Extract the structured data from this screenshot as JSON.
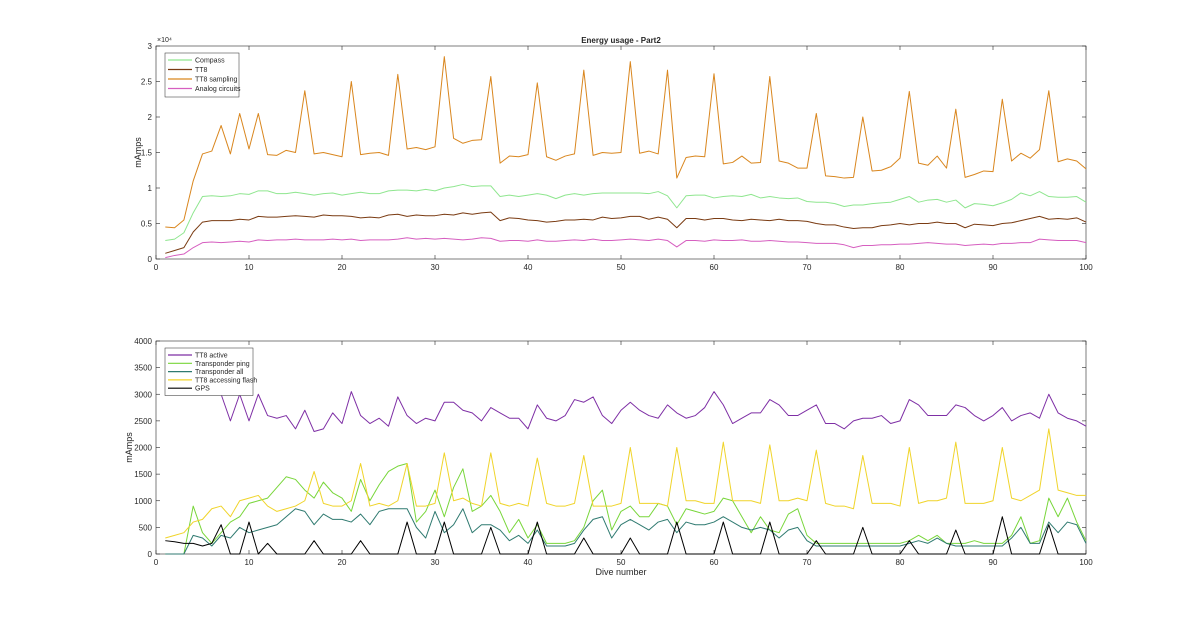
{
  "chart_data": [
    {
      "type": "line",
      "title": "Energy usage - Part2",
      "xlabel": "",
      "ylabel": "mAmps",
      "y_exponent": "×10⁴",
      "xlim": [
        0,
        100
      ],
      "ylim": [
        0,
        30000
      ],
      "xticks": [
        0,
        10,
        20,
        30,
        40,
        50,
        60,
        70,
        80,
        90,
        100
      ],
      "yticks": [
        0,
        5000,
        10000,
        15000,
        20000,
        25000,
        30000
      ],
      "ytick_labels": [
        "0",
        "0.5",
        "1",
        "1.5",
        "2",
        "2.5",
        "3"
      ],
      "grid": false,
      "legend_position": "top-left",
      "series": [
        {
          "name": "Compass",
          "color": "#8fe68f",
          "values": [
            2600,
            2800,
            3700,
            6500,
            8800,
            8900,
            8800,
            8900,
            9200,
            9100,
            9600,
            9600,
            9200,
            9200,
            9400,
            9200,
            9000,
            9200,
            9300,
            9000,
            9200,
            9400,
            9200,
            9200,
            9600,
            9700,
            9700,
            9600,
            9800,
            9600,
            10000,
            10200,
            10500,
            10200,
            10300,
            10300,
            8800,
            9000,
            8800,
            9000,
            9200,
            9000,
            8500,
            9000,
            9200,
            9000,
            9200,
            9300,
            9300,
            9300,
            9300,
            9300,
            9200,
            9500,
            8900,
            7200,
            8900,
            9000,
            9000,
            8600,
            8800,
            8900,
            8800,
            9100,
            8600,
            8800,
            8600,
            8500,
            8600,
            8100,
            8000,
            8000,
            7800,
            7400,
            7600,
            7600,
            7800,
            7900,
            8000,
            8400,
            8800,
            8000,
            8300,
            8400,
            8000,
            8300,
            7200,
            7800,
            7700,
            7500,
            7900,
            8400,
            9300,
            8900,
            9500,
            8800,
            8700,
            8700,
            8800,
            8000
          ]
        },
        {
          "name": "TT8",
          "color": "#7a3b12",
          "values": [
            800,
            1200,
            1600,
            3800,
            5200,
            5400,
            5400,
            5400,
            5600,
            5500,
            6000,
            5900,
            5900,
            6000,
            6100,
            6000,
            5900,
            6200,
            6100,
            6100,
            6000,
            5800,
            5900,
            5800,
            6200,
            6300,
            6000,
            6200,
            6100,
            6100,
            6300,
            6200,
            6500,
            6300,
            6500,
            6600,
            5400,
            5800,
            5700,
            5500,
            5400,
            5200,
            5300,
            5500,
            5500,
            5600,
            5500,
            5900,
            5700,
            5800,
            6000,
            6000,
            5600,
            5900,
            5600,
            4400,
            5700,
            5700,
            5500,
            5700,
            5700,
            5500,
            5400,
            5600,
            5500,
            5400,
            5600,
            5400,
            5400,
            5300,
            5000,
            4800,
            4800,
            4500,
            4300,
            4400,
            4400,
            4700,
            4800,
            5000,
            4800,
            5000,
            5000,
            5200,
            5000,
            5000,
            4400,
            4900,
            4800,
            4700,
            5000,
            5100,
            5400,
            5700,
            6000,
            5600,
            5700,
            5600,
            5800,
            5200
          ]
        },
        {
          "name": "TT8 sampling",
          "color": "#d9861e",
          "values": [
            4500,
            4400,
            5500,
            11000,
            14800,
            15200,
            18800,
            14800,
            20500,
            15500,
            20500,
            14700,
            14600,
            15300,
            15000,
            23700,
            14800,
            15000,
            14700,
            14400,
            25000,
            14700,
            14900,
            15000,
            14600,
            26000,
            15500,
            15700,
            15400,
            15800,
            28500,
            17000,
            16300,
            16700,
            16800,
            25700,
            13500,
            14500,
            14400,
            14700,
            24800,
            14400,
            13900,
            14500,
            14800,
            26600,
            14600,
            15000,
            14900,
            15000,
            27800,
            14900,
            15200,
            14800,
            26600,
            11400,
            14300,
            14500,
            14400,
            26100,
            13400,
            13600,
            14500,
            13500,
            13600,
            25700,
            13800,
            13500,
            12800,
            12800,
            20500,
            11700,
            11600,
            11400,
            11500,
            20000,
            12400,
            12500,
            13000,
            14200,
            23600,
            13500,
            13200,
            14500,
            12800,
            21100,
            11500,
            11900,
            12400,
            12300,
            22500,
            13800,
            14900,
            14200,
            15400,
            23700,
            13700,
            14100,
            13800,
            12700
          ]
        },
        {
          "name": "Analog circuits",
          "color": "#d65fc0",
          "values": [
            200,
            500,
            700,
            1600,
            2300,
            2400,
            2300,
            2400,
            2500,
            2400,
            2700,
            2600,
            2700,
            2700,
            2800,
            2700,
            2700,
            2700,
            2800,
            2700,
            2800,
            2600,
            2700,
            2700,
            2700,
            2800,
            3000,
            2800,
            2900,
            2800,
            2900,
            2800,
            2700,
            2800,
            3000,
            2900,
            2500,
            2600,
            2600,
            2500,
            2700,
            2500,
            2500,
            2600,
            2700,
            2600,
            2800,
            2600,
            2600,
            2700,
            2800,
            2700,
            2600,
            2800,
            2600,
            1700,
            2600,
            2600,
            2500,
            2700,
            2600,
            2600,
            2700,
            2500,
            2500,
            2600,
            2500,
            2400,
            2400,
            2300,
            2200,
            2200,
            2200,
            2000,
            1600,
            1900,
            1900,
            2000,
            2000,
            2100,
            2100,
            2200,
            2300,
            2200,
            2100,
            2100,
            1900,
            2000,
            2100,
            2000,
            2200,
            2200,
            2300,
            2300,
            2800,
            2700,
            2600,
            2600,
            2600,
            2300
          ]
        }
      ]
    },
    {
      "type": "line",
      "title": "",
      "xlabel": "Dive number",
      "ylabel": "mAmps",
      "xlim": [
        0,
        100
      ],
      "ylim": [
        0,
        4000
      ],
      "xticks": [
        0,
        10,
        20,
        30,
        40,
        50,
        60,
        70,
        80,
        90,
        100
      ],
      "yticks": [
        0,
        500,
        1000,
        1500,
        2000,
        2500,
        3000,
        3500,
        4000
      ],
      "ytick_labels": [
        "0",
        "500",
        "1000",
        "1500",
        "2000",
        "2500",
        "3000",
        "3500",
        "4000"
      ],
      "grid": false,
      "legend_position": "top-left",
      "series": [
        {
          "name": "TT8 active",
          "color": "#7e2fa5",
          "values": [
            null,
            null,
            null,
            null,
            null,
            null,
            3000,
            2500,
            3000,
            2500,
            3000,
            2600,
            2550,
            2600,
            2350,
            2700,
            2300,
            2350,
            2650,
            2450,
            3050,
            2600,
            2450,
            2550,
            2400,
            2950,
            2600,
            2450,
            2550,
            2500,
            2850,
            2850,
            2700,
            2650,
            2500,
            2750,
            2650,
            2550,
            2550,
            2350,
            2800,
            2550,
            2500,
            2600,
            2900,
            2850,
            2950,
            2600,
            2450,
            2700,
            2850,
            2700,
            2600,
            2550,
            2800,
            2650,
            2550,
            2600,
            2750,
            3050,
            2800,
            2450,
            2550,
            2650,
            2650,
            2900,
            2800,
            2600,
            2600,
            2700,
            2800,
            2450,
            2450,
            2350,
            2500,
            2550,
            2550,
            2600,
            2450,
            2500,
            2900,
            2800,
            2600,
            2600,
            2600,
            2800,
            2750,
            2600,
            2500,
            2600,
            2750,
            2500,
            2600,
            2650,
            2550,
            3000,
            2650,
            2550,
            2500,
            2400
          ]
        },
        {
          "name": "Transponder ping",
          "color": "#78d63a",
          "values": [
            0,
            0,
            0,
            900,
            400,
            200,
            400,
            600,
            700,
            950,
            1000,
            1050,
            1250,
            1450,
            1400,
            1200,
            1050,
            1350,
            1150,
            1050,
            800,
            1400,
            1000,
            1300,
            1550,
            1650,
            1700,
            600,
            800,
            1200,
            700,
            1250,
            1600,
            800,
            900,
            1100,
            800,
            400,
            650,
            300,
            550,
            200,
            200,
            200,
            250,
            500,
            1000,
            1200,
            450,
            800,
            900,
            700,
            700,
            950,
            900,
            550,
            850,
            800,
            750,
            800,
            1050,
            1000,
            700,
            400,
            700,
            450,
            400,
            750,
            850,
            350,
            200,
            200,
            200,
            200,
            200,
            200,
            200,
            200,
            200,
            200,
            250,
            350,
            250,
            350,
            200,
            200,
            200,
            250,
            200,
            200,
            200,
            350,
            700,
            200,
            250,
            1050,
            700,
            1050,
            600,
            250
          ]
        },
        {
          "name": "Transponder all",
          "color": "#2f7a70",
          "values": [
            0,
            0,
            0,
            350,
            300,
            150,
            350,
            300,
            500,
            400,
            450,
            500,
            550,
            700,
            850,
            800,
            550,
            750,
            650,
            650,
            600,
            750,
            550,
            800,
            850,
            850,
            850,
            500,
            300,
            800,
            400,
            550,
            850,
            400,
            550,
            550,
            450,
            250,
            350,
            200,
            450,
            150,
            150,
            150,
            200,
            450,
            650,
            700,
            300,
            550,
            650,
            550,
            450,
            600,
            650,
            400,
            600,
            550,
            550,
            600,
            700,
            600,
            500,
            450,
            500,
            450,
            300,
            450,
            500,
            250,
            150,
            150,
            150,
            150,
            150,
            150,
            150,
            150,
            150,
            150,
            200,
            250,
            200,
            300,
            200,
            150,
            150,
            150,
            150,
            150,
            150,
            300,
            500,
            200,
            200,
            600,
            400,
            600,
            550,
            200
          ]
        },
        {
          "name": "TT8 accessing flash",
          "color": "#f0d42a",
          "values": [
            300,
            350,
            400,
            600,
            650,
            850,
            900,
            700,
            1000,
            1050,
            1100,
            900,
            800,
            850,
            900,
            1000,
            1550,
            950,
            900,
            900,
            1000,
            1700,
            900,
            950,
            900,
            1000,
            1700,
            900,
            900,
            950,
            1900,
            1000,
            1050,
            950,
            900,
            1900,
            950,
            900,
            950,
            900,
            1800,
            950,
            900,
            900,
            950,
            1850,
            900,
            900,
            900,
            950,
            2000,
            950,
            950,
            950,
            900,
            2000,
            1000,
            1000,
            950,
            950,
            2100,
            1000,
            1000,
            1000,
            950,
            2050,
            1000,
            1000,
            1050,
            1000,
            1950,
            950,
            900,
            900,
            850,
            1850,
            950,
            950,
            950,
            900,
            2000,
            950,
            1000,
            1000,
            1050,
            2100,
            950,
            950,
            950,
            1000,
            2000,
            1050,
            1000,
            1100,
            1200,
            2350,
            1200,
            1150,
            1100,
            1100
          ]
        },
        {
          "name": "GPS",
          "color": "#000000",
          "values": [
            250,
            230,
            200,
            200,
            150,
            200,
            550,
            0,
            0,
            600,
            0,
            200,
            0,
            0,
            0,
            0,
            250,
            0,
            0,
            0,
            0,
            250,
            0,
            0,
            0,
            0,
            600,
            0,
            0,
            0,
            600,
            0,
            0,
            0,
            0,
            500,
            0,
            0,
            0,
            0,
            600,
            0,
            0,
            0,
            0,
            300,
            0,
            0,
            0,
            0,
            300,
            0,
            0,
            0,
            0,
            600,
            0,
            0,
            0,
            0,
            600,
            0,
            0,
            0,
            0,
            600,
            0,
            0,
            0,
            0,
            250,
            0,
            0,
            0,
            0,
            500,
            0,
            0,
            0,
            0,
            250,
            0,
            0,
            0,
            0,
            450,
            0,
            0,
            0,
            0,
            700,
            0,
            0,
            0,
            0,
            550,
            0,
            0,
            0,
            0
          ]
        }
      ]
    }
  ]
}
